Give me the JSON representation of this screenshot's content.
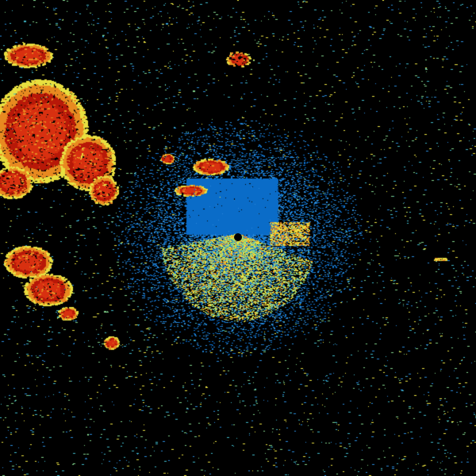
{
  "radar": {
    "background": "#000000",
    "palette": {
      "light_blue": "#2a8ad8",
      "blue": "#0a6cc8",
      "cyan": "#3fb8c8",
      "green": "#7fd08a",
      "yellow": "#e8e040",
      "orange": "#e88a20",
      "red": "#d83010",
      "dark_red": "#b81808"
    },
    "site_marker_color": "#000000"
  }
}
